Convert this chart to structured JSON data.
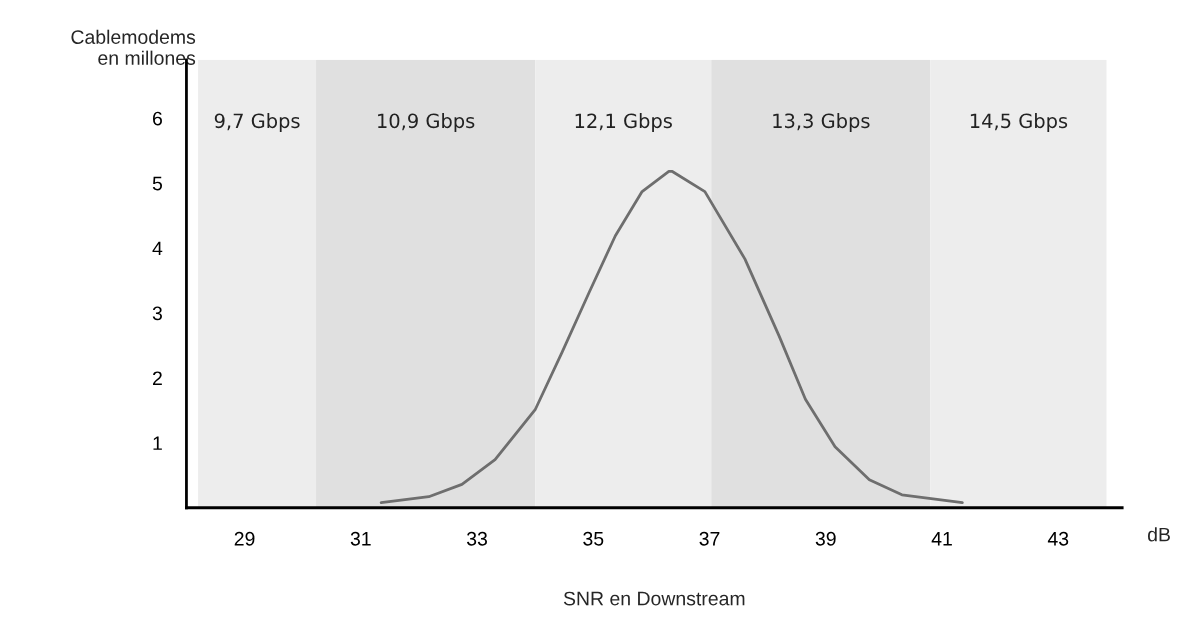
{
  "chart_data": {
    "type": "line",
    "xlabel": "SNR en Downstream",
    "ylabel": "Cablemodems\nen millones",
    "annotations": [
      "dB"
    ],
    "x": [
      31.35,
      32.17,
      32.74,
      33.31,
      34.0,
      34.46,
      34.93,
      35.38,
      35.84,
      36.3,
      36.36,
      36.92,
      37.61,
      38.2,
      38.65,
      39.16,
      39.75,
      40.31,
      41.35
    ],
    "series": [
      {
        "color": "#6e6e6e",
        "values": [
          0.08,
          0.17,
          0.36,
          0.74,
          1.51,
          2.39,
          3.32,
          4.19,
          4.87,
          5.18,
          5.18,
          4.87,
          3.83,
          2.64,
          1.67,
          0.94,
          0.43,
          0.2,
          0.08
        ]
      }
    ],
    "xlim": [
      28,
      44.1
    ],
    "xticks": [
      29,
      31,
      33,
      35,
      37,
      39,
      41,
      43
    ],
    "ylim": [
      0,
      6.9
    ],
    "yticks": [
      1,
      2,
      3,
      4,
      5,
      6
    ],
    "bands": [
      {
        "axis": "x",
        "from": 28.2,
        "to": 30.23,
        "label": "9,7 Gbps",
        "color": "#ededed"
      },
      {
        "axis": "x",
        "from": 30.23,
        "to": 34.0,
        "label": "10,9 Gbps",
        "color": "#e0e0e0"
      },
      {
        "axis": "x",
        "from": 34.0,
        "to": 37.03,
        "label": "12,1 Gbps",
        "color": "#ededed"
      },
      {
        "axis": "x",
        "from": 37.03,
        "to": 40.8,
        "label": "13,3 Gbps",
        "color": "#e0e0e0"
      },
      {
        "axis": "x",
        "from": 40.8,
        "to": 43.83,
        "label": "14,5 Gbps",
        "color": "#ededed"
      }
    ],
    "grid": false
  }
}
